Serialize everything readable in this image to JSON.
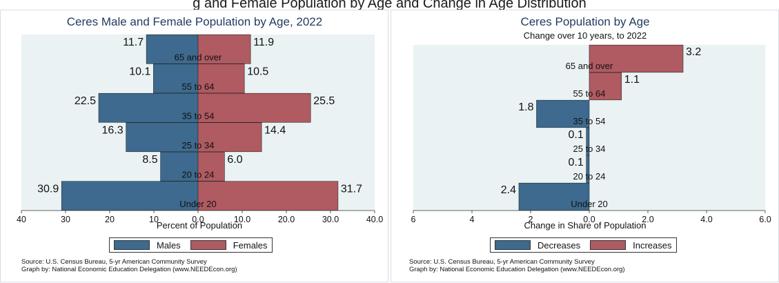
{
  "page_title": "g and Female Population by Age and Change in Age Distribution",
  "colors": {
    "male": "#3d6a8e",
    "female": "#b05a62",
    "decrease": "#3d6a8e",
    "increase": "#b05a62",
    "plot_bg": "#eaf2f3",
    "title": "#1f3a5f"
  },
  "chart_data": [
    {
      "type": "bar",
      "orientation": "horizontal",
      "subtype": "population-pyramid",
      "title": "Ceres Male and Female Population by Age, 2022",
      "xlabel": "Percent of Population",
      "ylabel": "",
      "categories": [
        "Under 20",
        "20 to 24",
        "25 to 34",
        "35 to 54",
        "55 to 64",
        "65 and over"
      ],
      "series": [
        {
          "name": "Males",
          "side": "left",
          "values": [
            30.9,
            8.5,
            16.3,
            22.5,
            10.1,
            11.7
          ],
          "labels": [
            "30.9",
            "8.5",
            "16.3",
            "22.5",
            "10.1",
            "11.7"
          ]
        },
        {
          "name": "Females",
          "side": "right",
          "values": [
            31.7,
            6.0,
            14.4,
            25.5,
            10.5,
            11.9
          ],
          "labels": [
            "31.7",
            "6.0",
            "14.4",
            "25.5",
            "10.5",
            "11.9"
          ]
        }
      ],
      "xlim": [
        -40,
        40
      ],
      "xticks": [
        -40,
        -30,
        -20,
        -10,
        0,
        10,
        20,
        30,
        40
      ],
      "xtick_labels": [
        "40",
        "30",
        "20",
        "10",
        "0.0",
        "10.0",
        "20.0",
        "30.0",
        "40.0"
      ],
      "legend": [
        "Males",
        "Females"
      ],
      "legend_position": "bottom",
      "grid": false
    },
    {
      "type": "bar",
      "orientation": "horizontal",
      "subtype": "diverging",
      "title": "Ceres Population by Age",
      "subtitle": "Change over 10 years, to 2022",
      "xlabel": "Change in Share of Population",
      "ylabel": "",
      "categories": [
        "Under 20",
        "20 to 24",
        "25 to 34",
        "35 to 54",
        "55 to 64",
        "65 and over"
      ],
      "series": [
        {
          "name": "Decreases",
          "side": "left",
          "values": [
            2.4,
            0.1,
            0.1,
            1.8,
            0,
            0
          ],
          "labels": [
            "2.4",
            "0.1",
            "0.1",
            "1.8",
            "",
            ""
          ]
        },
        {
          "name": "Increases",
          "side": "right",
          "values": [
            0,
            0,
            0,
            0,
            1.1,
            3.2
          ],
          "labels": [
            "",
            "",
            "",
            "",
            "1.1",
            "3.2"
          ]
        }
      ],
      "xlim": [
        -6,
        6
      ],
      "xticks": [
        -6,
        -4,
        -2,
        0,
        2,
        4,
        6
      ],
      "xtick_labels": [
        "6",
        "4",
        "2",
        "0.0",
        "2.0",
        "4.0",
        "6.0"
      ],
      "legend": [
        "Decreases",
        "Increases"
      ],
      "legend_position": "bottom",
      "grid": false
    }
  ],
  "source_line": "Source:  U.S. Census Bureau, 5-yr American Community Survey",
  "credit_line": "Graph by: National Economic Education Delegation (www.NEEDEcon.org)"
}
